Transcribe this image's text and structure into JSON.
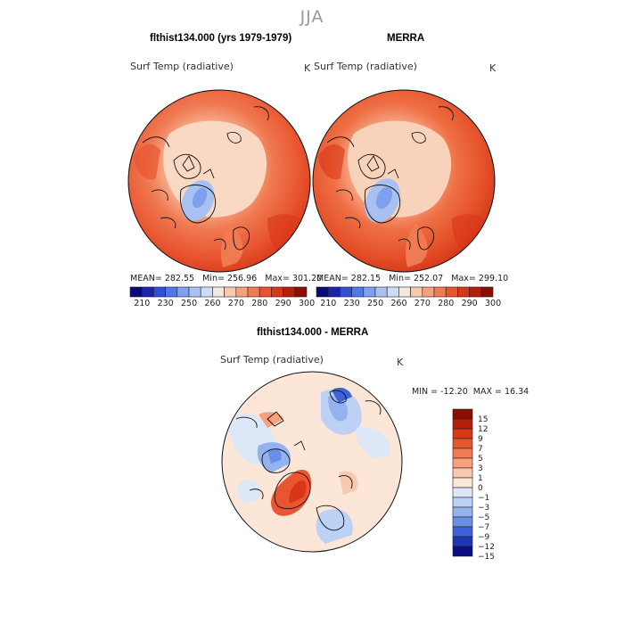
{
  "season": "JJA",
  "panels": [
    {
      "title": "flthist134.000 (yrs 1979-1979)",
      "variable": "Surf Temp (radiative)",
      "units": "K",
      "mean_label": "MEAN=",
      "mean": "282.55",
      "min_label": "Min=",
      "min": "256.96",
      "max_label": "Max=",
      "max": "301.20"
    },
    {
      "title": "MERRA",
      "variable": "Surf Temp (radiative)",
      "units": "K",
      "mean_label": "MEAN=",
      "mean": "282.15",
      "min_label": "Min=",
      "min": "252.07",
      "max_label": "Max=",
      "max": "299.10"
    }
  ],
  "colorbar": {
    "tick_labels": [
      "210",
      "230",
      "250",
      "260",
      "270",
      "280",
      "290",
      "300"
    ],
    "colors": [
      "#08087a",
      "#1a24a8",
      "#2f4fd6",
      "#4f79e6",
      "#7fa0ee",
      "#a9c1f2",
      "#cddcf6",
      "#f4e8de",
      "#f8c9ae",
      "#f6a07c",
      "#f07a52",
      "#e85530",
      "#d83618",
      "#b51e08",
      "#8a0f02"
    ]
  },
  "diff": {
    "title": "flthist134.000 - MERRA",
    "variable": "Surf Temp (radiative)",
    "units": "K",
    "min_label": "MIN =",
    "min": "-12.20",
    "max_label": "MAX =",
    "max": "16.34",
    "legend_levels": [
      "15",
      "12",
      "9",
      "7",
      "5",
      "3",
      "1",
      "0",
      "−1",
      "−3",
      "−5",
      "−7",
      "−9",
      "−12",
      "−15"
    ],
    "legend_colors": [
      "#8a0f02",
      "#b51e08",
      "#d83618",
      "#e85530",
      "#f07a52",
      "#f6a07c",
      "#f8c9ae",
      "#fbe6d8",
      "#dce8f8",
      "#bcd1f4",
      "#94b2f0",
      "#6b8fe8",
      "#3f62da",
      "#1f36b4",
      "#0a0e82"
    ]
  }
}
